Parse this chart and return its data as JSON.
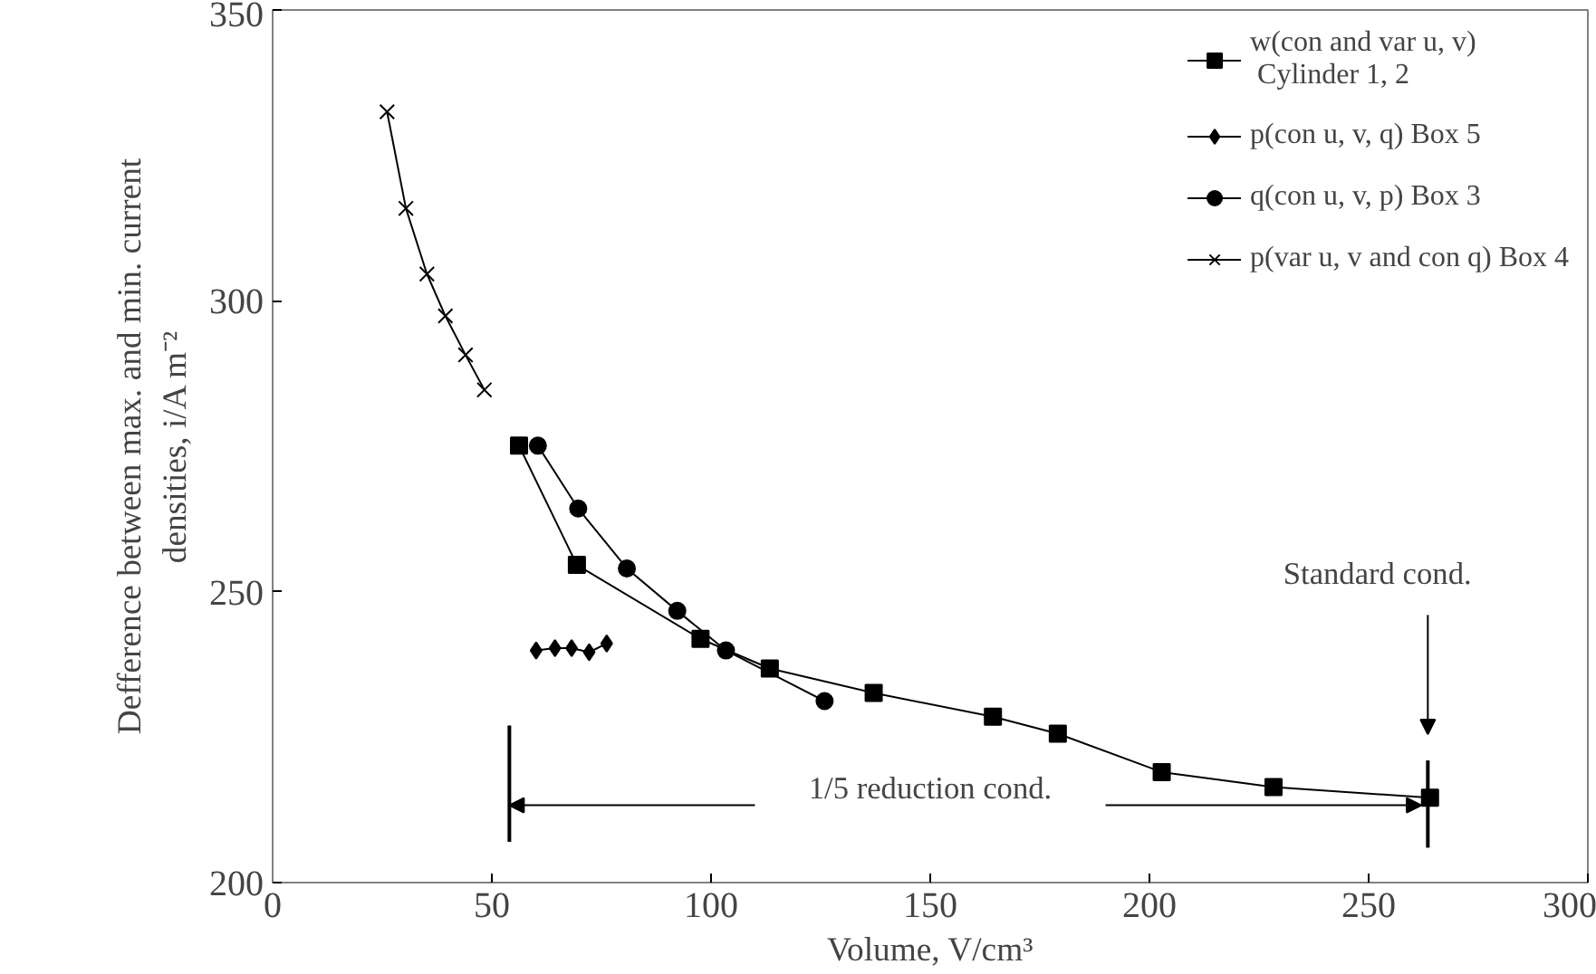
{
  "chart_data": {
    "type": "line",
    "xlabel": "Volume, V/cm³",
    "ylabel": "Defference between max. and min. current\ndensities, i/A m⁻²",
    "xlim": [
      0,
      300
    ],
    "ylim": [
      200,
      350
    ],
    "xticks": [
      0,
      50,
      100,
      150,
      200,
      250,
      300
    ],
    "yticks": [
      200,
      250,
      300,
      350
    ],
    "grid": false,
    "legend": "top right",
    "line_style": "solid",
    "series": [
      {
        "name": "w(con and var u, v)\n Cylinder 1, 2",
        "color": "#000000",
        "marker": "square",
        "x": [
          56.2,
          69.4,
          97.6,
          113.4,
          137.1,
          164.3,
          179.1,
          202.8,
          228.3,
          264.0
        ],
        "values": [
          275.1,
          254.6,
          241.9,
          236.8,
          232.6,
          228.5,
          225.6,
          219.0,
          216.4,
          214.6
        ]
      },
      {
        "name": "p(con u, v, q) Box 5",
        "color": "#000000",
        "marker": "diamond",
        "x": [
          60.1,
          64.4,
          68.2,
          72.2,
          76.2
        ],
        "values": [
          239.9,
          240.3,
          240.3,
          239.6,
          241.1
        ]
      },
      {
        "name": "q(con u, v, p) Box 3",
        "color": "#000000",
        "marker": "circle",
        "x": [
          60.5,
          69.7,
          80.8,
          92.3,
          103.4,
          125.9
        ],
        "values": [
          275.1,
          264.3,
          254.0,
          246.7,
          239.9,
          231.2
        ]
      },
      {
        "name": "p(var u, v and con q) Box 4",
        "color": "#000000",
        "marker": "cross",
        "x": [
          26.1,
          30.4,
          35.2,
          39.4,
          44.0,
          48.3
        ],
        "values": [
          332.5,
          315.9,
          304.6,
          297.4,
          290.7,
          284.7
        ]
      }
    ],
    "ref_lines": [
      {
        "axis": "x",
        "value": 54
      },
      {
        "axis": "x",
        "value": 263.5
      }
    ],
    "annotations": [
      "1/5 reduction cond.",
      "Standard cond."
    ]
  }
}
